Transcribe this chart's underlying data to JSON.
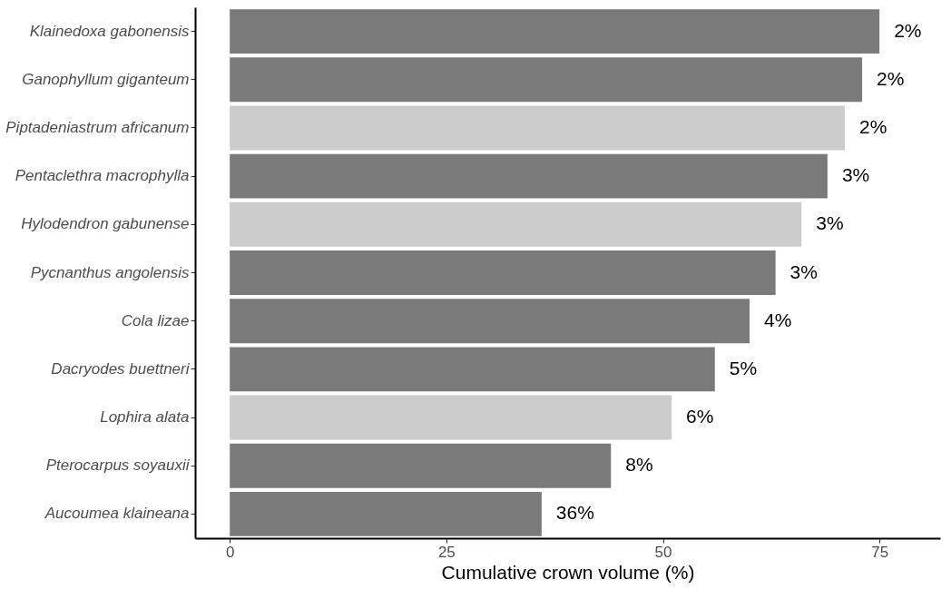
{
  "chart_data": {
    "type": "bar",
    "orientation": "horizontal",
    "xlabel": "Cumulative crown volume (%)",
    "categories": [
      "Klainedoxa gabonensis",
      "Ganophyllum giganteum",
      "Piptadeniastrum africanum",
      "Pentaclethra macrophylla",
      "Hylodendron gabunense",
      "Pycnanthus angolensis",
      "Cola lizae",
      "Dacryodes buettneri",
      "Lophira alata",
      "Pterocarpus soyauxii",
      "Aucoumea klaineana"
    ],
    "values": [
      75,
      73,
      71,
      69,
      66,
      63,
      60,
      56,
      51,
      44,
      36
    ],
    "colors": [
      "#7a7a7a",
      "#7a7a7a",
      "#cccccc",
      "#7a7a7a",
      "#cccccc",
      "#7a7a7a",
      "#7a7a7a",
      "#7a7a7a",
      "#cccccc",
      "#7a7a7a",
      "#7a7a7a"
    ],
    "annotations": [
      {
        "text": "2%",
        "x": 75,
        "y": "Klainedoxa gabonensis"
      },
      {
        "text": "2%",
        "x": 73,
        "y": "Ganophyllum giganteum"
      },
      {
        "text": "2%",
        "x": 71,
        "y": "Piptadeniastrum africanum"
      },
      {
        "text": "3%",
        "x": 69,
        "y": "Pentaclethra macrophylla"
      },
      {
        "text": "3%",
        "x": 66,
        "y": "Hylodendron gabunense"
      },
      {
        "text": "3%",
        "x": 63,
        "y": "Pycnanthus angolensis"
      },
      {
        "text": "4%",
        "x": 60,
        "y": "Cola lizae"
      },
      {
        "text": "5%",
        "x": 56,
        "y": "Dacryodes buettneri"
      },
      {
        "text": "6%",
        "x": 51,
        "y": "Lophira alata"
      },
      {
        "text": "8%",
        "x": 44,
        "y": "Pterocarpus soyauxii"
      },
      {
        "text": "36%",
        "x": 36,
        "y": "Aucoumea klaineana"
      }
    ],
    "xlim": [
      -4,
      82
    ],
    "xticks": [
      0,
      25,
      50,
      75
    ],
    "grid": false
  }
}
